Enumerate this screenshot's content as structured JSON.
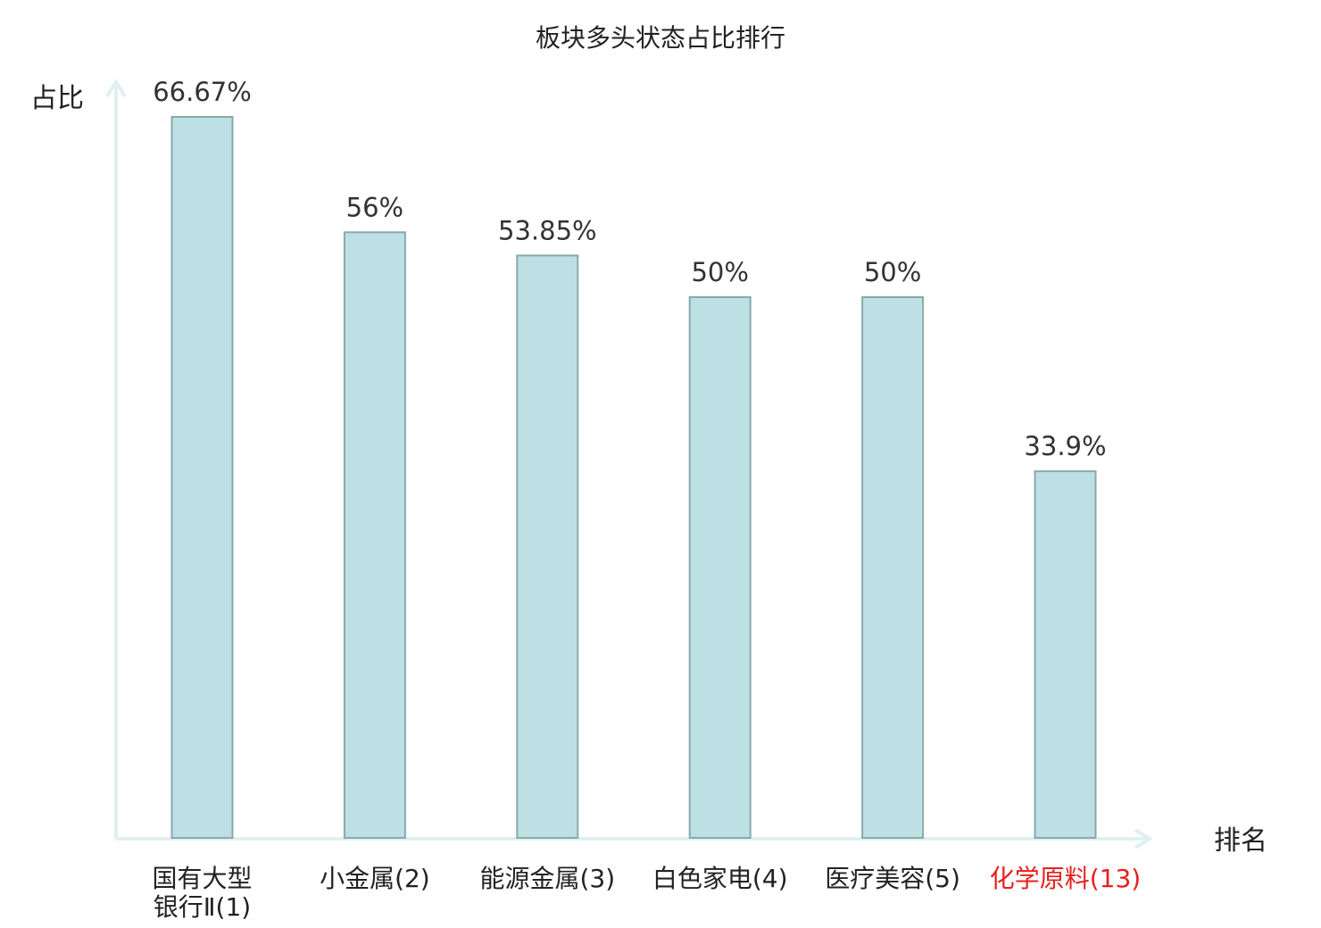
{
  "chart_data": {
    "type": "bar",
    "title": "板块多头状态占比排行",
    "ylabel": "占比",
    "xlabel": "排名",
    "ylim": [
      0,
      66.67
    ],
    "grid": false,
    "legend": "none",
    "categories": [
      {
        "name": "国有大型银行Ⅱ",
        "rank": "(1)",
        "lines": [
          "国有大型",
          "银行Ⅱ(1)"
        ],
        "highlight": false
      },
      {
        "name": "小金属",
        "rank": "(2)",
        "lines": [
          "小金属(2)"
        ],
        "highlight": false
      },
      {
        "name": "能源金属",
        "rank": "(3)",
        "lines": [
          "能源金属(3)"
        ],
        "highlight": false
      },
      {
        "name": "白色家电",
        "rank": "(4)",
        "lines": [
          "白色家电(4)"
        ],
        "highlight": false
      },
      {
        "name": "医疗美容",
        "rank": "(5)",
        "lines": [
          "医疗美容(5)"
        ],
        "highlight": false
      },
      {
        "name": "化学原料",
        "rank": "(13)",
        "lines": [
          "化学原料(13)"
        ],
        "highlight": true
      }
    ],
    "values": [
      66.67,
      56,
      53.85,
      50,
      50,
      33.9
    ],
    "value_labels": [
      "66.67%",
      "56%",
      "53.85%",
      "50%",
      "50%",
      "33.9%"
    ]
  },
  "colors": {
    "bar_fill": "#bce0e3",
    "bar_stroke": "#8aa9ab",
    "axis": "#dff0ee",
    "text": "#222222",
    "highlight": "#e8201c"
  }
}
